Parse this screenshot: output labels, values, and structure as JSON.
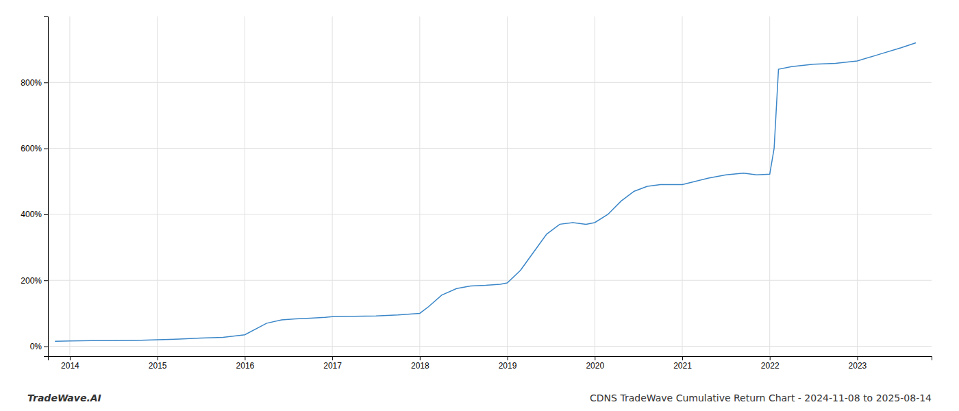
{
  "chart_data": {
    "type": "line",
    "title": "CDNS TradeWave Cumulative Return Chart - 2024-11-08 to 2025-08-14",
    "annotations": [
      {
        "text": "TradeWave.AI"
      }
    ],
    "color": "#3a86c8",
    "grid": true,
    "x": [
      2013.83,
      2014.0,
      2014.25,
      2014.5,
      2014.75,
      2015.0,
      2015.25,
      2015.5,
      2015.75,
      2016.0,
      2016.25,
      2016.42,
      2016.58,
      2016.75,
      2016.92,
      2017.0,
      2017.25,
      2017.5,
      2017.75,
      2018.0,
      2018.1,
      2018.25,
      2018.42,
      2018.58,
      2018.75,
      2018.92,
      2019.0,
      2019.15,
      2019.3,
      2019.45,
      2019.6,
      2019.75,
      2019.9,
      2020.0,
      2020.15,
      2020.3,
      2020.45,
      2020.6,
      2020.75,
      2021.0,
      2021.15,
      2021.3,
      2021.5,
      2021.7,
      2021.85,
      2022.0,
      2022.05,
      2022.1,
      2022.25,
      2022.5,
      2022.75,
      2023.0,
      2023.25,
      2023.5,
      2023.67
    ],
    "values": [
      15,
      16,
      17,
      17,
      18,
      20,
      22,
      25,
      27,
      35,
      70,
      80,
      83,
      85,
      88,
      90,
      91,
      92,
      95,
      100,
      120,
      155,
      175,
      183,
      185,
      188,
      192,
      230,
      285,
      340,
      370,
      375,
      370,
      375,
      400,
      440,
      470,
      485,
      490,
      490,
      500,
      510,
      520,
      525,
      520,
      522,
      600,
      840,
      848,
      855,
      858,
      865,
      885,
      905,
      920
    ],
    "xlim": [
      2013.75,
      2023.85
    ],
    "xticks": [
      2014,
      2015,
      2016,
      2017,
      2018,
      2019,
      2020,
      2021,
      2022,
      2023
    ],
    "ylim": [
      -30,
      1000
    ],
    "yticks": [
      {
        "value": 0,
        "label": "0%"
      },
      {
        "value": 200,
        "label": "200%"
      },
      {
        "value": 400,
        "label": "400%"
      },
      {
        "value": 600,
        "label": "600%"
      },
      {
        "value": 800,
        "label": "800%"
      }
    ]
  }
}
